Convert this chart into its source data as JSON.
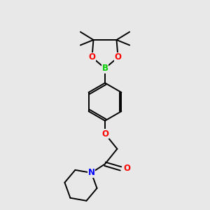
{
  "background_color": "#e8e8e8",
  "bond_color": "#000000",
  "atom_colors": {
    "O": "#ff0000",
    "B": "#00cc00",
    "N": "#0000ff",
    "C": "#000000"
  },
  "figsize": [
    3.0,
    3.0
  ],
  "dpi": 100
}
